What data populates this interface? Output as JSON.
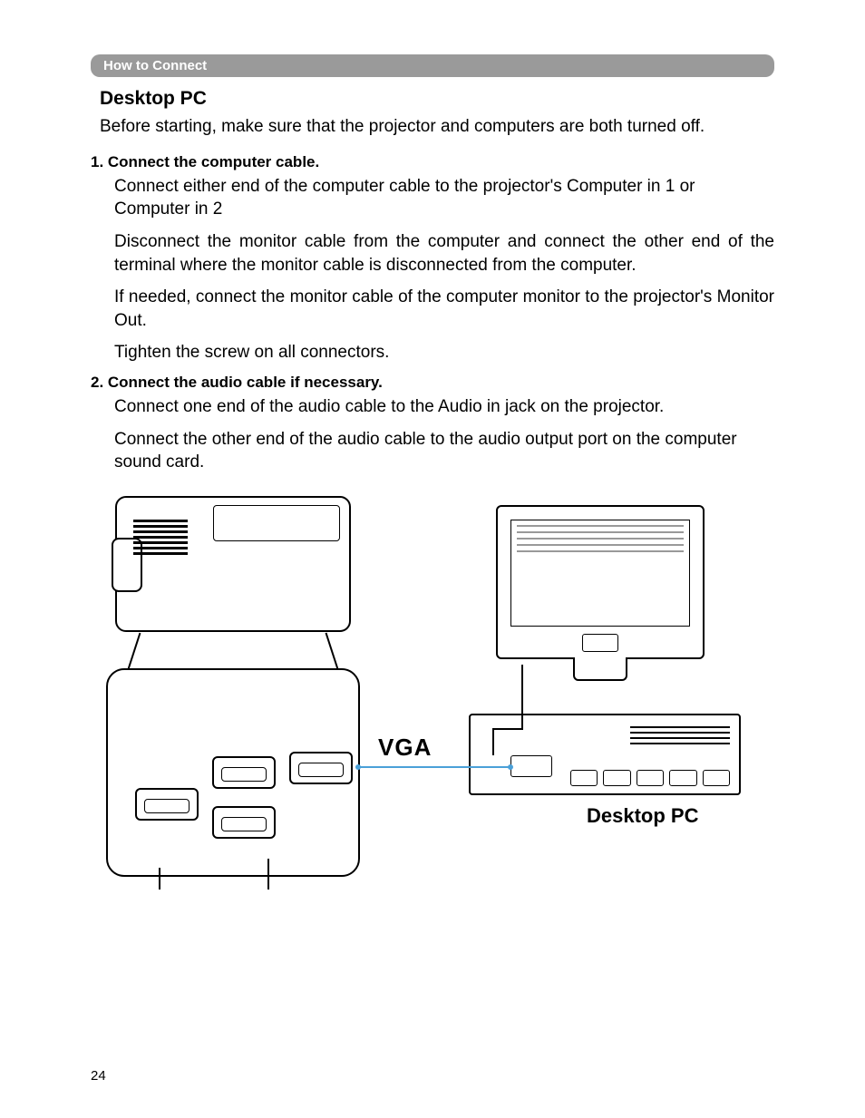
{
  "header": {
    "section_label": "How to Connect"
  },
  "title": "Desktop PC",
  "intro": "Before starting, make sure that the projector and computers are both turned off.",
  "step1": {
    "heading": "1. Connect the computer cable.",
    "p1": "Connect either end of the computer cable to the projector's Computer in 1 or Computer in 2",
    "p2": "Disconnect the monitor cable from the computer and connect the other end of the terminal where the monitor cable is disconnected from the computer.",
    "p3": "If needed, connect the monitor cable of the computer monitor to the projector's Monitor Out.",
    "p4": "Tighten the screw on all connectors."
  },
  "step2": {
    "heading": "2. Connect the audio cable if necessary.",
    "p1": "Connect one end of the audio cable to the Audio in jack on the projector.",
    "p2": "Connect the other end of the audio cable to the audio output port on the computer sound card."
  },
  "diagram": {
    "vga_label": "VGA",
    "pc_label": "Desktop PC",
    "line_color": "#4aa0d8"
  },
  "page_number": "24"
}
